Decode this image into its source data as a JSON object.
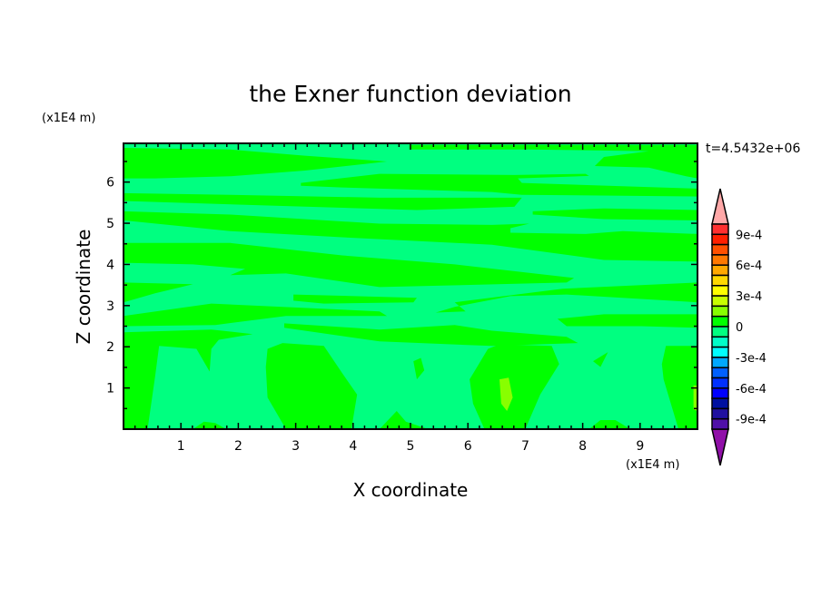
{
  "chart_data": {
    "type": "contour",
    "title": "the Exner function deviation",
    "xlabel": "X coordinate",
    "ylabel": "Z coordinate",
    "x_unit": "(x1E4 m)",
    "y_unit": "(x1E4 m)",
    "annotation": "t=4.5432e+06",
    "xlim": [
      0,
      10
    ],
    "ylim": [
      0,
      6.94
    ],
    "x_ticks": [
      1,
      2,
      3,
      4,
      5,
      6,
      7,
      8,
      9
    ],
    "y_ticks": [
      1,
      2,
      3,
      4,
      5,
      6
    ],
    "colorbar": {
      "levels_min": -0.001,
      "levels_max": 0.001,
      "step": 0.0001,
      "labels": [
        {
          "value": 0.0009,
          "text": "9e-4"
        },
        {
          "value": 0.0006,
          "text": "6e-4"
        },
        {
          "value": 0.0003,
          "text": "3e-4"
        },
        {
          "value": 0,
          "text": "0"
        },
        {
          "value": -0.0003,
          "text": "-3e-4"
        },
        {
          "value": -0.0006,
          "text": "-6e-4"
        },
        {
          "value": -0.0009,
          "text": "-9e-4"
        }
      ],
      "colors_high_to_low": [
        "#ff3030",
        "#ff2000",
        "#ff5000",
        "#ff7800",
        "#ffa800",
        "#ffd800",
        "#ffff00",
        "#c8ff00",
        "#88ff00",
        "#00ff00",
        "#00ff80",
        "#00ffc8",
        "#00ffff",
        "#00a8ff",
        "#0060ff",
        "#0030ff",
        "#0000ff",
        "#0010a0",
        "#2010a0",
        "#5010a8"
      ],
      "over_color": "#ffa8a8",
      "under_color": "#9010a8"
    },
    "background_range": [
      -0.0001,
      0
    ],
    "regions": [
      {
        "range": [
          0,
          0.0001
        ],
        "points": [
          [
            0,
            6.83
          ],
          [
            1.86,
            6.79
          ],
          [
            3.16,
            6.64
          ],
          [
            4.59,
            6.5
          ],
          [
            3.16,
            6.28
          ],
          [
            1.86,
            6.14
          ],
          [
            0.55,
            6.09
          ],
          [
            0,
            6.09
          ]
        ]
      },
      {
        "range": [
          0,
          0.0001
        ],
        "points": [
          [
            4.98,
            6.9
          ],
          [
            10,
            6.9
          ],
          [
            10,
            6.09
          ],
          [
            9.8,
            6.14
          ],
          [
            9.15,
            6.35
          ],
          [
            8.21,
            6.39
          ],
          [
            8.37,
            6.61
          ],
          [
            9.15,
            6.75
          ],
          [
            7.07,
            6.79
          ],
          [
            4.98,
            6.79
          ]
        ]
      },
      {
        "range": [
          0,
          0.0001
        ],
        "points": [
          [
            3.09,
            5.98
          ],
          [
            4.46,
            6.2
          ],
          [
            6.81,
            6.17
          ],
          [
            8.05,
            6.2
          ],
          [
            8.11,
            6.15
          ],
          [
            6.87,
            6.09
          ],
          [
            6.94,
            5.98
          ],
          [
            10,
            5.84
          ],
          [
            10,
            5.65
          ],
          [
            6.94,
            5.69
          ],
          [
            6.42,
            5.76
          ],
          [
            3.81,
            5.87
          ],
          [
            3.09,
            5.91
          ]
        ]
      },
      {
        "range": [
          0,
          0.0001
        ],
        "points": [
          [
            0,
            5.73
          ],
          [
            1.86,
            5.69
          ],
          [
            4.46,
            5.62
          ],
          [
            6.94,
            5.62
          ],
          [
            6.81,
            5.4
          ],
          [
            5.11,
            5.32
          ],
          [
            2.51,
            5.43
          ],
          [
            0,
            5.54
          ]
        ]
      },
      {
        "range": [
          0,
          0.0001
        ],
        "points": [
          [
            7.13,
            5.29
          ],
          [
            8.37,
            5.36
          ],
          [
            10,
            5.32
          ],
          [
            10,
            5.07
          ],
          [
            8.37,
            5.1
          ],
          [
            7.13,
            5.21
          ]
        ]
      },
      {
        "range": [
          0,
          0.0001
        ],
        "points": [
          [
            0,
            5.29
          ],
          [
            1.86,
            5.21
          ],
          [
            4.46,
            4.99
          ],
          [
            6.42,
            4.96
          ],
          [
            7.07,
            4.99
          ],
          [
            6.74,
            4.88
          ],
          [
            6.74,
            4.77
          ],
          [
            8.05,
            4.74
          ],
          [
            8.7,
            4.81
          ],
          [
            10,
            4.74
          ],
          [
            10,
            4.07
          ],
          [
            8.37,
            4.11
          ],
          [
            6.42,
            4.48
          ],
          [
            3.81,
            4.66
          ],
          [
            1.86,
            4.81
          ],
          [
            0,
            5.07
          ]
        ]
      },
      {
        "range": [
          0,
          0.0001
        ],
        "points": [
          [
            0,
            4.52
          ],
          [
            1.86,
            4.52
          ],
          [
            3.81,
            4.22
          ],
          [
            5.77,
            4.0
          ],
          [
            7.85,
            3.67
          ],
          [
            7.72,
            3.56
          ],
          [
            4.46,
            3.45
          ],
          [
            2.83,
            3.78
          ],
          [
            1.86,
            3.74
          ],
          [
            2.12,
            3.89
          ],
          [
            1.21,
            4.0
          ],
          [
            0,
            4.04
          ]
        ]
      },
      {
        "range": [
          0,
          0.0001
        ],
        "points": [
          [
            0,
            3.56
          ],
          [
            1.21,
            3.52
          ],
          [
            0.55,
            3.3
          ],
          [
            0,
            3.08
          ]
        ]
      },
      {
        "range": [
          0,
          0.0001
        ],
        "points": [
          [
            2.96,
            3.27
          ],
          [
            5.11,
            3.19
          ],
          [
            5.05,
            3.08
          ],
          [
            3.49,
            3.05
          ],
          [
            2.96,
            3.12
          ]
        ]
      },
      {
        "range": [
          0,
          0.0001
        ],
        "points": [
          [
            5.77,
            3.08
          ],
          [
            7.65,
            3.41
          ],
          [
            10,
            3.56
          ],
          [
            10,
            3.08
          ],
          [
            7.72,
            3.27
          ],
          [
            6.74,
            3.23
          ],
          [
            5.77,
            2.97
          ],
          [
            5.44,
            2.83
          ],
          [
            5.96,
            2.86
          ]
        ]
      },
      {
        "range": [
          0,
          0.0001
        ],
        "points": [
          [
            0,
            2.75
          ],
          [
            1.53,
            3.05
          ],
          [
            4.46,
            2.86
          ],
          [
            4.59,
            2.75
          ],
          [
            2.83,
            2.75
          ],
          [
            1.6,
            2.53
          ],
          [
            0,
            2.5
          ]
        ]
      },
      {
        "range": [
          0,
          0.0001
        ],
        "points": [
          [
            2.8,
            2.57
          ],
          [
            4.46,
            2.42
          ],
          [
            5.77,
            2.53
          ],
          [
            6.42,
            2.39
          ],
          [
            7.72,
            2.24
          ],
          [
            7.92,
            2.09
          ],
          [
            6.42,
            2.02
          ],
          [
            4.46,
            2.13
          ],
          [
            2.8,
            2.46
          ]
        ]
      },
      {
        "range": [
          0,
          0.0001
        ],
        "points": [
          [
            7.56,
            2.68
          ],
          [
            8.37,
            2.79
          ],
          [
            10,
            2.79
          ],
          [
            10,
            2.46
          ],
          [
            9.02,
            2.5
          ],
          [
            7.72,
            2.5
          ]
        ]
      },
      {
        "range": [
          0,
          0.0001
        ],
        "points": [
          [
            0,
            2.35
          ],
          [
            1.53,
            2.42
          ],
          [
            2.25,
            2.31
          ],
          [
            1.66,
            2.17
          ],
          [
            1.53,
            1.95
          ],
          [
            1.5,
            1.4
          ],
          [
            1.27,
            1.95
          ],
          [
            0.62,
            2.02
          ],
          [
            0.55,
            1.28
          ],
          [
            0.42,
            0
          ],
          [
            0,
            0
          ]
        ]
      },
      {
        "range": [
          0,
          0.0001
        ],
        "points": [
          [
            2.51,
            1.95
          ],
          [
            2.77,
            2.09
          ],
          [
            3.49,
            2.02
          ],
          [
            3.81,
            1.36
          ],
          [
            4.07,
            0.84
          ],
          [
            3.97,
            0
          ],
          [
            2.83,
            0
          ],
          [
            2.51,
            0.77
          ],
          [
            2.48,
            1.51
          ]
        ]
      },
      {
        "range": [
          0,
          0.0001
        ],
        "points": [
          [
            6.03,
            1.21
          ],
          [
            6.35,
            1.95
          ],
          [
            6.55,
            2.06
          ],
          [
            7.46,
            2.02
          ],
          [
            7.59,
            1.58
          ],
          [
            7.26,
            0.84
          ],
          [
            7.0,
            0
          ],
          [
            6.29,
            0
          ],
          [
            6.09,
            0.62
          ]
        ]
      },
      {
        "range": [
          0,
          0.0001
        ],
        "points": [
          [
            5.05,
            1.65
          ],
          [
            5.18,
            1.73
          ],
          [
            5.24,
            1.43
          ],
          [
            5.11,
            1.21
          ]
        ]
      },
      {
        "range": [
          0,
          0.0001
        ],
        "points": [
          [
            9.45,
            2.02
          ],
          [
            10,
            2.02
          ],
          [
            10,
            0
          ],
          [
            9.67,
            0
          ],
          [
            9.41,
            1.21
          ],
          [
            9.38,
            1.58
          ]
        ]
      },
      {
        "range": [
          0,
          0.0001
        ],
        "points": [
          [
            8.18,
            1.65
          ],
          [
            8.44,
            1.87
          ],
          [
            8.31,
            1.51
          ]
        ]
      },
      {
        "range": [
          0,
          0.0001
        ],
        "points": [
          [
            1.21,
            0
          ],
          [
            1.4,
            0.18
          ],
          [
            1.6,
            0.15
          ],
          [
            1.79,
            0
          ]
        ]
      },
      {
        "range": [
          0,
          0.0001
        ],
        "points": [
          [
            4.46,
            0
          ],
          [
            4.76,
            0.44
          ],
          [
            4.92,
            0.18
          ],
          [
            5.31,
            0
          ]
        ]
      },
      {
        "range": [
          0,
          0.0001
        ],
        "points": [
          [
            8.11,
            0
          ],
          [
            8.31,
            0.22
          ],
          [
            8.57,
            0.22
          ],
          [
            8.83,
            0
          ]
        ]
      },
      {
        "range": [
          0.0001,
          0.0002
        ],
        "points": [
          [
            6.55,
            1.21
          ],
          [
            6.71,
            1.25
          ],
          [
            6.78,
            0.77
          ],
          [
            6.68,
            0.44
          ],
          [
            6.58,
            0.62
          ]
        ]
      },
      {
        "range": [
          0.0001,
          0.0002
        ],
        "points": [
          [
            9.93,
            1.06
          ],
          [
            10,
            1.06
          ],
          [
            10,
            0.44
          ],
          [
            9.93,
            0.48
          ]
        ]
      }
    ]
  }
}
